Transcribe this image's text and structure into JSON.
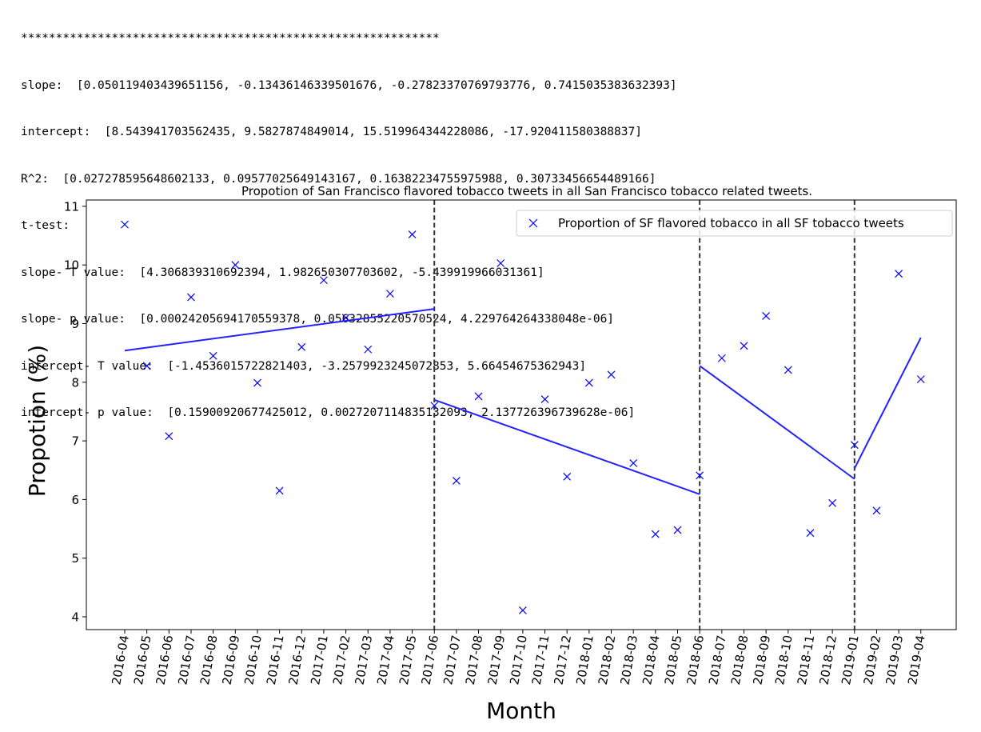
{
  "output": {
    "separator": "************************************************************",
    "lines": [
      {
        "label": "slope:  ",
        "value": "[0.050119403439651156, -0.13436146339501676, -0.27823370769793776, 0.7415035383632393]"
      },
      {
        "label": "intercept:  ",
        "value": "[8.543941703562435, 9.5827874849014, 15.519964344228086, -17.920411580388837]"
      },
      {
        "label": "R^2:  ",
        "value": "[0.027278595648602133, 0.09577025649143167, 0.16382234755975988, 0.30733456654489166]"
      },
      {
        "label": "t-test:",
        "value": ""
      },
      {
        "label": "slope- T value:  ",
        "value": "[4.306839310692394, 1.982650307703602, -5.439919966031361]"
      },
      {
        "label": "slope- p value:  ",
        "value": "[0.00024205694170559378, 0.05632855220570524, 4.229764264338048e-06]"
      },
      {
        "label": "intercept- T value:  ",
        "value": "[-1.4536015722821403, -3.2579923245072853, 5.66454675362943]"
      },
      {
        "label": "intercept- p value:  ",
        "value": "[0.15900920677425012, 0.0027207114835132093, 2.137726396739628e-06]"
      }
    ]
  },
  "chart_data": {
    "type": "scatter",
    "title": "Propotion of San Francisco flavored tobacco tweets in all San Francisco tobacco related tweets.",
    "xlabel": "Month",
    "ylabel": "Propotion (%)",
    "ylim": [
      3.8,
      11.05
    ],
    "yticks": [
      4,
      5,
      6,
      7,
      8,
      9,
      10,
      11
    ],
    "grid": false,
    "legend_position": "top-right",
    "categories": [
      "2016-04",
      "2016-05",
      "2016-06",
      "2016-07",
      "2016-08",
      "2016-09",
      "2016-10",
      "2016-11",
      "2016-12",
      "2017-01",
      "2017-02",
      "2017-03",
      "2017-04",
      "2017-05",
      "2017-06",
      "2017-07",
      "2017-08",
      "2017-09",
      "2017-10",
      "2017-11",
      "2017-12",
      "2018-01",
      "2018-02",
      "2018-03",
      "2018-04",
      "2018-05",
      "2018-06",
      "2018-07",
      "2018-08",
      "2018-09",
      "2018-10",
      "2018-11",
      "2018-12",
      "2019-01",
      "2019-02",
      "2019-03",
      "2019-04"
    ],
    "series": [
      {
        "name": "Proportion of SF flavored tobacco in all SF tobacco tweets",
        "marker": "x",
        "color": "#0000ff",
        "values": [
          10.69,
          8.28,
          7.08,
          9.45,
          8.45,
          10.0,
          7.99,
          6.15,
          8.6,
          9.74,
          9.1,
          8.56,
          9.51,
          10.52,
          7.6,
          6.32,
          7.76,
          10.03,
          4.11,
          7.71,
          6.39,
          7.99,
          8.13,
          6.62,
          5.41,
          5.48,
          6.41,
          8.41,
          8.62,
          9.13,
          8.21,
          5.43,
          5.94,
          6.93,
          5.81,
          9.85,
          8.05
        ]
      }
    ],
    "fit_lines": [
      {
        "start": "2016-04",
        "end": "2017-06",
        "y_start": 8.54,
        "y_end": 9.25
      },
      {
        "start": "2017-06",
        "end": "2018-06",
        "y_start": 7.7,
        "y_end": 6.09
      },
      {
        "start": "2018-06",
        "end": "2019-01",
        "y_start": 8.28,
        "y_end": 6.35
      },
      {
        "start": "2019-01",
        "end": "2019-04",
        "y_start": 6.53,
        "y_end": 8.76
      }
    ],
    "vlines": [
      "2017-06",
      "2018-06",
      "2019-01"
    ],
    "colors": {
      "marker": "#0000ff",
      "fit_line": "#2222ff",
      "vline": "#333333"
    }
  }
}
